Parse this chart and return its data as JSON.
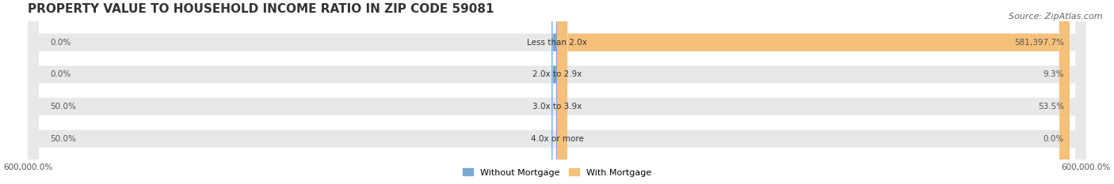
{
  "title": "PROPERTY VALUE TO HOUSEHOLD INCOME RATIO IN ZIP CODE 59081",
  "source": "Source: ZipAtlas.com",
  "categories": [
    "Less than 2.0x",
    "2.0x to 2.9x",
    "3.0x to 3.9x",
    "4.0x or more"
  ],
  "without_mortgage": [
    0.0,
    0.0,
    50.0,
    50.0
  ],
  "with_mortgage": [
    581397.7,
    9.3,
    53.5,
    0.0
  ],
  "without_mortgage_labels": [
    "0.0%",
    "0.0%",
    "50.0%",
    "50.0%"
  ],
  "with_mortgage_labels": [
    "581,397.7%",
    "9.3%",
    "53.5%",
    "0.0%"
  ],
  "color_without": "#7ba7d4",
  "color_with": "#f5c07a",
  "background_bar": "#e8e8e8",
  "background_fig": "#ffffff",
  "xlim_left": -600000,
  "xlim_right": 600000,
  "x_tick_left": "600,000.0%",
  "x_tick_right": "600,000.0%",
  "legend_without": "Without Mortgage",
  "legend_with": "With Mortgage",
  "title_fontsize": 11,
  "source_fontsize": 8,
  "bar_height": 0.55,
  "rounding_size": 12000,
  "stub_size": 6000
}
